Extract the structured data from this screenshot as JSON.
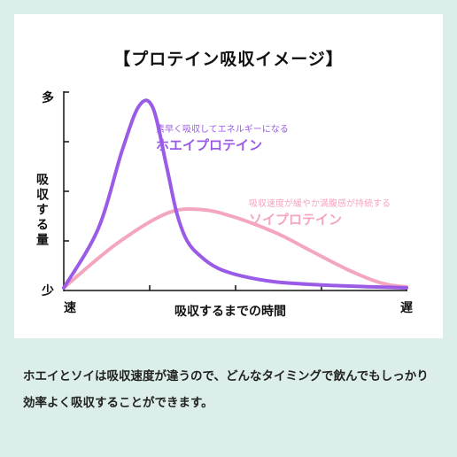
{
  "colors": {
    "background": "#dbeee9",
    "card": "#ffffff",
    "whey": "#9a5be6",
    "soy": "#f4a6bf"
  },
  "chart_data": {
    "type": "line",
    "title": "【プロテイン吸収イメージ】",
    "ylabel": "吸収する量",
    "y_top_label": "多",
    "y_bottom_label": "少",
    "xlabel": "吸収するまでの時間",
    "x_left_label": "速",
    "x_right_label": "遅",
    "xlim": [
      0,
      100
    ],
    "ylim": [
      0,
      100
    ],
    "grid": false,
    "series": [
      {
        "name": "ホエイプロテイン",
        "annotation": "素早く吸収してエネルギーになる",
        "color": "#9a5be6",
        "x": [
          0,
          10,
          17,
          22,
          26,
          30,
          33,
          36,
          40,
          45,
          52,
          62,
          75,
          90,
          100
        ],
        "y": [
          0,
          30,
          70,
          93,
          92,
          62,
          38,
          24,
          16,
          10,
          6,
          3,
          1.5,
          0.5,
          0
        ]
      },
      {
        "name": "ソイプロテイン",
        "annotation": "吸収速度が緩やか満腹感が持続する",
        "color": "#f4a6bf",
        "x": [
          0,
          15,
          30,
          40,
          50,
          62,
          72,
          82,
          90,
          95,
          100
        ],
        "y": [
          0,
          22,
          38,
          40,
          36,
          28,
          19,
          10,
          4,
          1.5,
          0.5
        ]
      }
    ]
  },
  "caption": {
    "text": "ホエイとソイは吸収速度が違うので、どんなタイミングで飲んでもしっかり効率よく吸収することができます。"
  }
}
